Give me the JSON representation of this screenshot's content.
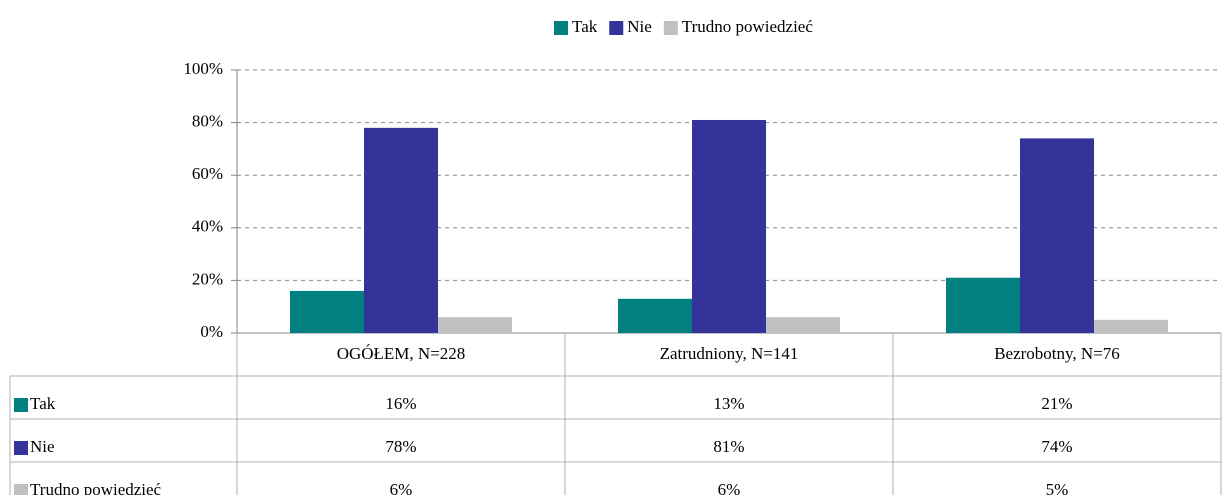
{
  "chart_data": {
    "type": "bar",
    "categories": [
      "OGÓŁEM, N=228",
      "Zatrudniony, N=141",
      "Bezrobotny, N=76"
    ],
    "series": [
      {
        "name": "Tak",
        "color": "#008080",
        "values": [
          16,
          13,
          21
        ],
        "value_labels": [
          "16%",
          "13%",
          "21%"
        ]
      },
      {
        "name": "Nie",
        "color": "#333399",
        "values": [
          78,
          81,
          74
        ],
        "value_labels": [
          "78%",
          "81%",
          "74%"
        ]
      },
      {
        "name": "Trudno powiedzieć",
        "color": "#c0c0c0",
        "values": [
          6,
          6,
          5
        ],
        "value_labels": [
          "6%",
          "6%",
          "5%"
        ]
      }
    ],
    "ylim": [
      0,
      100
    ],
    "yticks": [
      {
        "value": 0,
        "label": "0%"
      },
      {
        "value": 20,
        "label": "20%"
      },
      {
        "value": 40,
        "label": "40%"
      },
      {
        "value": 60,
        "label": "60%"
      },
      {
        "value": 80,
        "label": "80%"
      },
      {
        "value": 100,
        "label": "100%"
      }
    ],
    "grid": true,
    "legend": "top"
  }
}
